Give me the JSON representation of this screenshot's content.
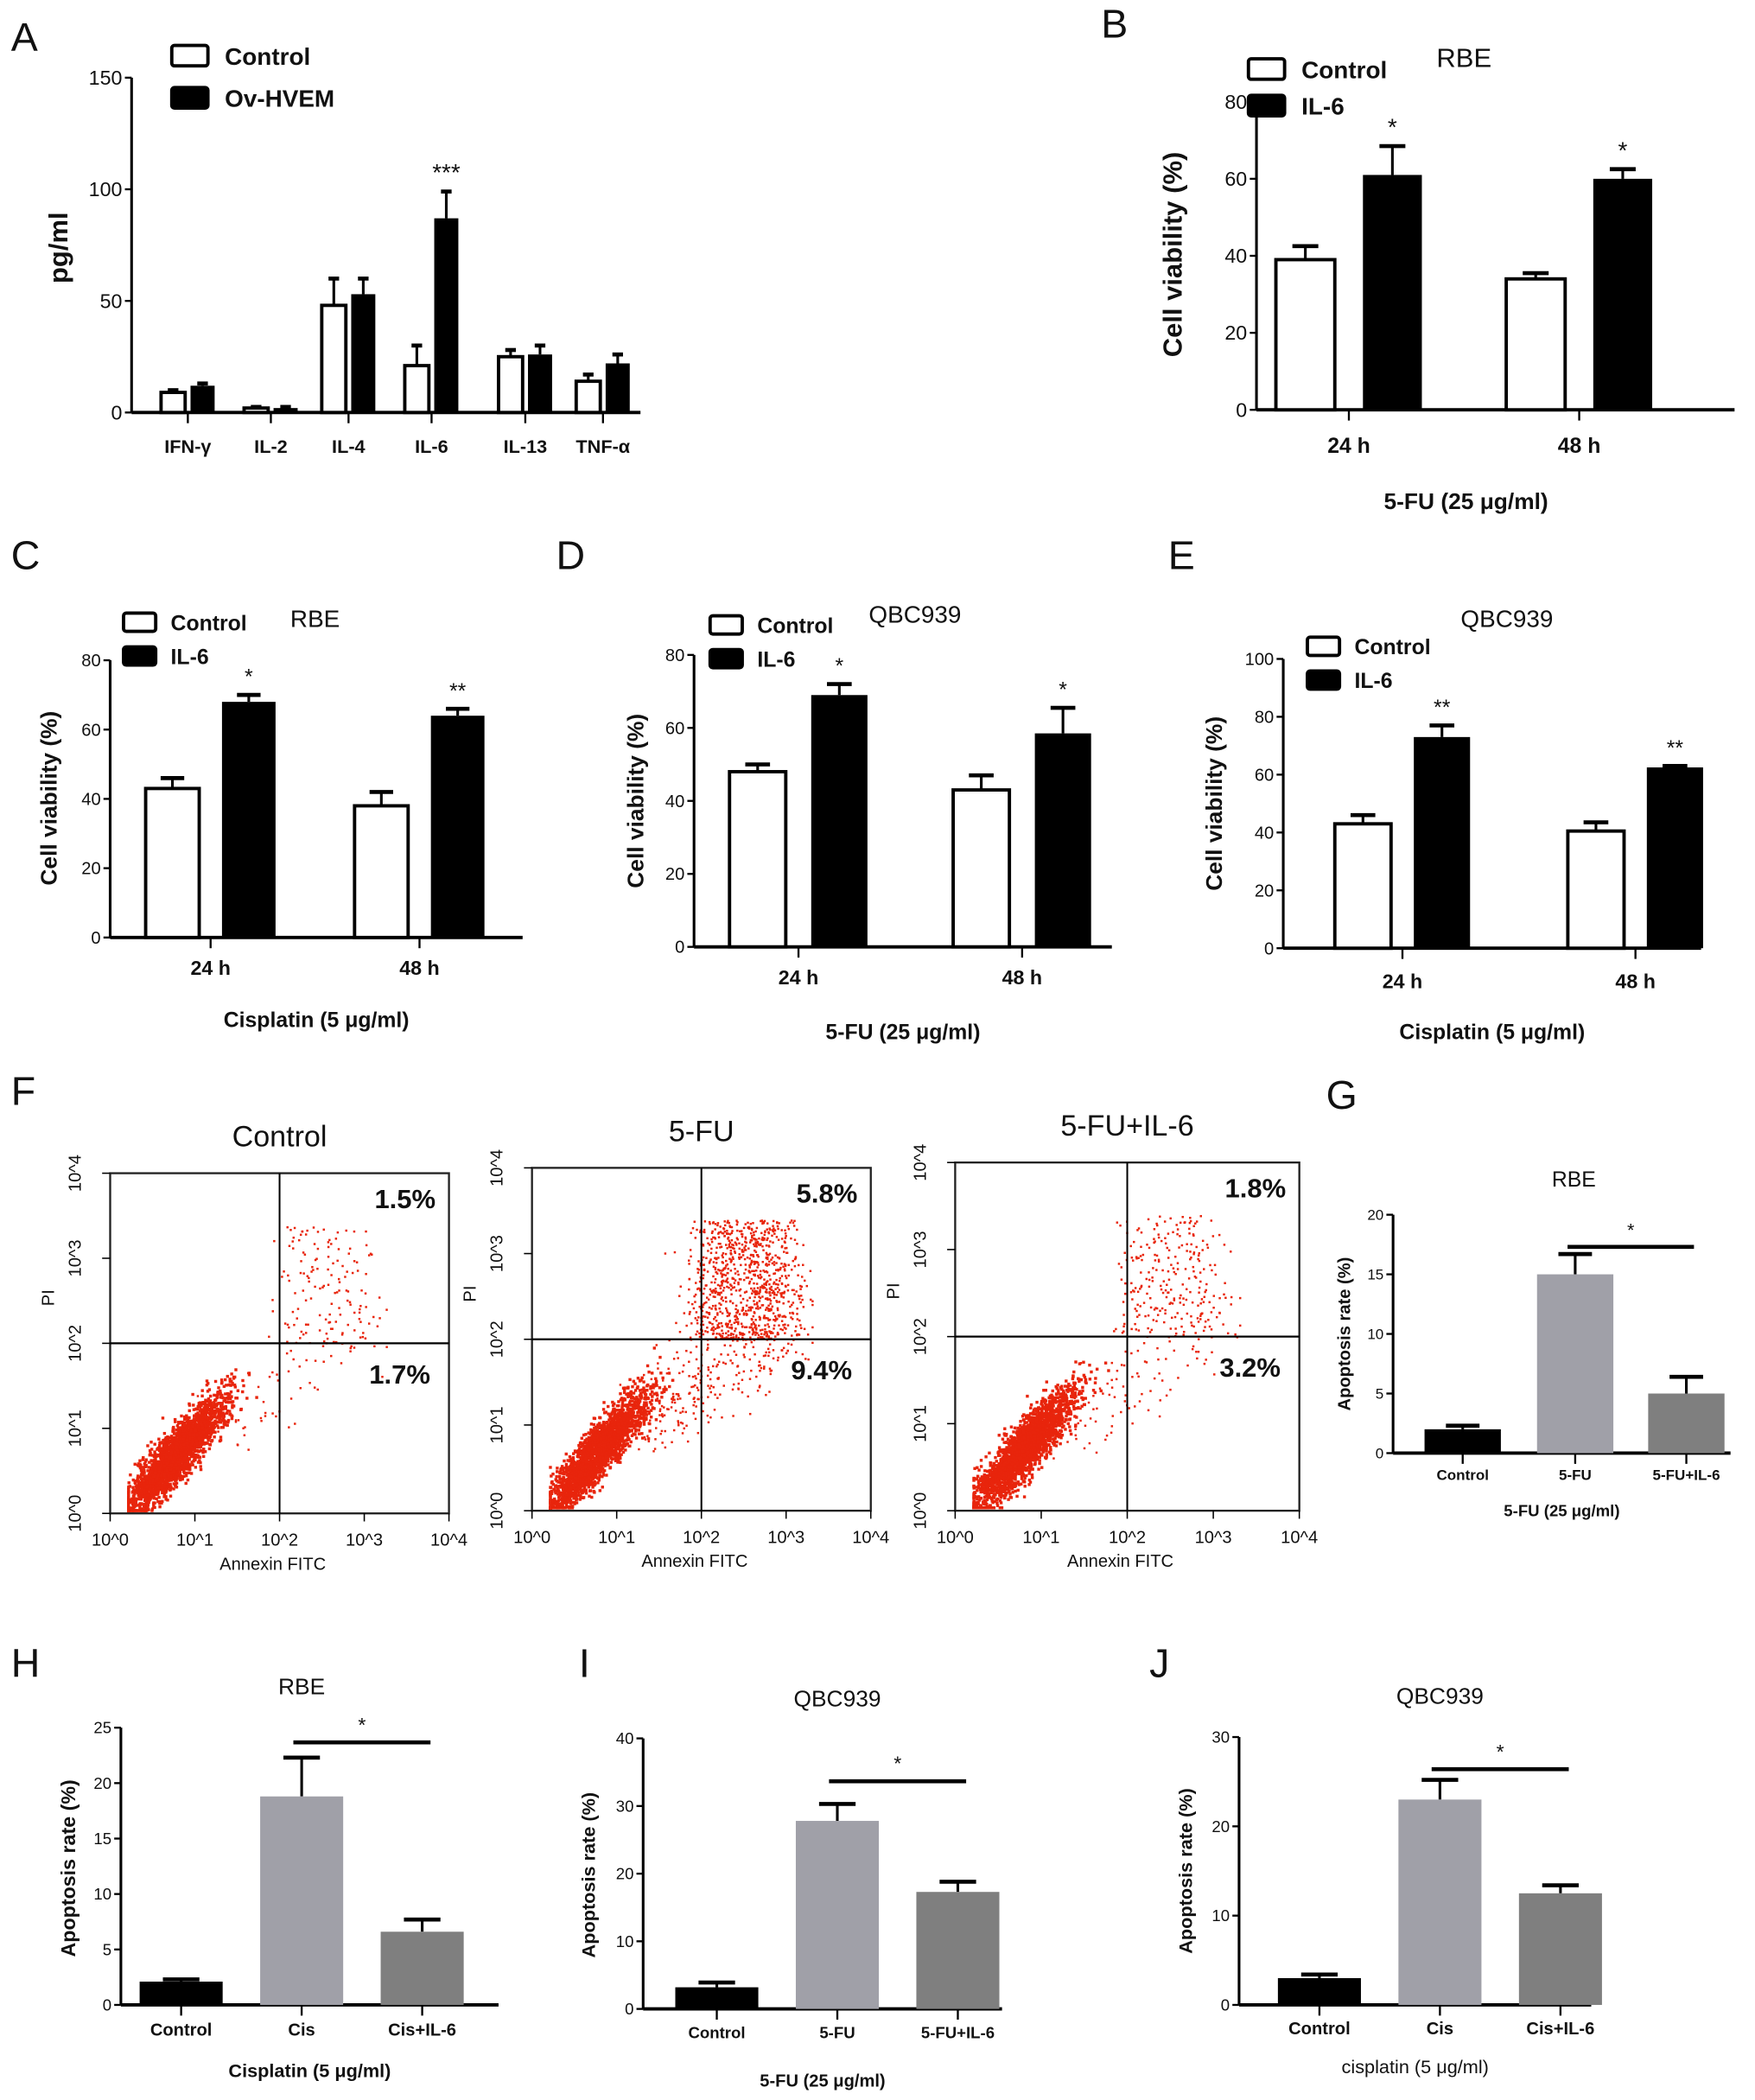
{
  "chart_data": [
    {
      "panel": "A",
      "type": "bar",
      "title": "",
      "ylabel": "pg/ml",
      "xlabel": "",
      "ylim": [
        0,
        150
      ],
      "yticks": [
        0,
        50,
        100,
        150
      ],
      "categories": [
        "IFN-γ",
        "IL-2",
        "IL-4",
        "IL-6",
        "IL-13",
        "TNF-α"
      ],
      "series": [
        {
          "name": "Control",
          "fill": "#ffffff",
          "values": [
            9,
            2,
            48,
            21,
            25,
            14
          ],
          "errors": [
            1,
            0.5,
            12,
            9,
            3,
            3
          ]
        },
        {
          "name": "Ov-HVEM",
          "fill": "#000000",
          "values": [
            12,
            2,
            53,
            87,
            26,
            22
          ],
          "errors": [
            1,
            0.5,
            7,
            12,
            4,
            4
          ]
        }
      ],
      "annotations": [
        "",
        "",
        "",
        "***",
        "",
        ""
      ]
    },
    {
      "panel": "B",
      "type": "bar",
      "title": "RBE",
      "ylabel": "Cell viability (%)",
      "xlabel": "5-FU (25 μg/ml)",
      "ylim": [
        0,
        80
      ],
      "yticks": [
        0,
        20,
        40,
        60,
        80
      ],
      "categories": [
        "24 h",
        "48 h"
      ],
      "series": [
        {
          "name": "Control",
          "fill": "#ffffff",
          "values": [
            39,
            34
          ],
          "errors": [
            3.5,
            1.5
          ]
        },
        {
          "name": "IL-6",
          "fill": "#000000",
          "values": [
            61,
            60
          ],
          "errors": [
            7.5,
            2.5
          ]
        }
      ],
      "annotations": [
        "*",
        "*"
      ]
    },
    {
      "panel": "C",
      "type": "bar",
      "title": "RBE",
      "ylabel": "Cell viability (%)",
      "xlabel": "Cisplatin (5 μg/ml)",
      "ylim": [
        0,
        80
      ],
      "yticks": [
        0,
        20,
        40,
        60,
        80
      ],
      "categories": [
        "24 h",
        "48 h"
      ],
      "series": [
        {
          "name": "Control",
          "fill": "#ffffff",
          "values": [
            43,
            38
          ],
          "errors": [
            3,
            4
          ]
        },
        {
          "name": "IL-6",
          "fill": "#000000",
          "values": [
            68,
            64
          ],
          "errors": [
            2,
            2
          ]
        }
      ],
      "annotations": [
        "*",
        "**"
      ]
    },
    {
      "panel": "D",
      "type": "bar",
      "title": "QBC939",
      "ylabel": "Cell viability (%)",
      "xlabel": "5-FU (25 μg/ml)",
      "ylim": [
        0,
        80
      ],
      "yticks": [
        0,
        20,
        40,
        60,
        80
      ],
      "categories": [
        "24 h",
        "48 h"
      ],
      "series": [
        {
          "name": "Control",
          "fill": "#ffffff",
          "values": [
            48,
            43
          ],
          "errors": [
            2,
            4
          ]
        },
        {
          "name": "IL-6",
          "fill": "#000000",
          "values": [
            69,
            58.5
          ],
          "errors": [
            3,
            7
          ]
        }
      ],
      "annotations": [
        "*",
        "*"
      ]
    },
    {
      "panel": "E",
      "type": "bar",
      "title": "QBC939",
      "ylabel": "Cell viability (%)",
      "xlabel": "Cisplatin (5 μg/ml)",
      "ylim": [
        0,
        100
      ],
      "yticks": [
        0,
        20,
        40,
        60,
        80,
        100
      ],
      "categories": [
        "24 h",
        "48 h"
      ],
      "series": [
        {
          "name": "Control",
          "fill": "#ffffff",
          "values": [
            43,
            40.5
          ],
          "errors": [
            3,
            3
          ]
        },
        {
          "name": "IL-6",
          "fill": "#000000",
          "values": [
            73,
            62.5
          ],
          "errors": [
            4,
            0.5
          ]
        }
      ],
      "annotations": [
        "**",
        "**"
      ]
    },
    {
      "panel": "F",
      "type": "scatter",
      "xlabel": "Annexin FITC",
      "ylabel": "PI",
      "scale": "log",
      "xlim": [
        1,
        10000
      ],
      "ylim": [
        1,
        10000
      ],
      "tick_labels": [
        "10^0",
        "10^1",
        "10^2",
        "10^3",
        "10^4"
      ],
      "point_color": "#e8250c",
      "gate": [
        100,
        100
      ],
      "plots": [
        {
          "title": "Control",
          "upper_right": "1.5%",
          "lower_right": "1.7%"
        },
        {
          "title": "5-FU",
          "upper_right": "5.8%",
          "lower_right": "9.4%"
        },
        {
          "title": "5-FU+IL-6",
          "upper_right": "1.8%",
          "lower_right": "3.2%"
        }
      ]
    },
    {
      "panel": "G",
      "type": "bar",
      "title": "RBE",
      "ylabel": "Apoptosis rate (%)",
      "xlabel": "5-FU (25 μg/ml)",
      "ylim": [
        0,
        20
      ],
      "yticks": [
        0,
        5,
        10,
        15,
        20
      ],
      "categories": [
        "Control",
        "5-FU",
        "5-FU+IL-6"
      ],
      "fills": [
        "#000000",
        "#a0a0a8",
        "#7f7f7f"
      ],
      "values": [
        2,
        15,
        5
      ],
      "errors": [
        0.3,
        1.7,
        1.4
      ],
      "significance": {
        "between": [
          1,
          2
        ],
        "label": "*"
      }
    },
    {
      "panel": "H",
      "type": "bar",
      "title": "RBE",
      "ylabel": "Apoptosis rate (%)",
      "xlabel": "Cisplatin (5 μg/ml)",
      "ylim": [
        0,
        25
      ],
      "yticks": [
        0,
        5,
        10,
        15,
        20,
        25
      ],
      "categories": [
        "Control",
        "Cis",
        "Cis+IL-6"
      ],
      "fills": [
        "#000000",
        "#a0a0a8",
        "#7f7f7f"
      ],
      "values": [
        2.1,
        18.8,
        6.6
      ],
      "errors": [
        0.2,
        3.5,
        1.1
      ],
      "significance": {
        "between": [
          1,
          2
        ],
        "label": "*"
      }
    },
    {
      "panel": "I",
      "type": "bar",
      "title": "QBC939",
      "ylabel": "Apoptosis rate (%)",
      "xlabel": "5-FU (25 μg/ml)",
      "ylim": [
        0,
        40
      ],
      "yticks": [
        0,
        10,
        20,
        30,
        40
      ],
      "categories": [
        "Control",
        "5-FU",
        "5-FU+IL-6"
      ],
      "fills": [
        "#000000",
        "#a0a0a8",
        "#7f7f7f"
      ],
      "values": [
        3.2,
        27.8,
        17.3
      ],
      "errors": [
        0.7,
        2.5,
        1.5
      ],
      "significance": {
        "between": [
          1,
          2
        ],
        "label": "*"
      }
    },
    {
      "panel": "J",
      "type": "bar",
      "title": "QBC939",
      "ylabel": "Apoptosis rate (%)",
      "xlabel": "cisplatin (5 μg/ml)",
      "ylim": [
        0,
        30
      ],
      "yticks": [
        0,
        10,
        20,
        30
      ],
      "categories": [
        "Control",
        "Cis",
        "Cis+IL-6"
      ],
      "fills": [
        "#000000",
        "#a0a0a8",
        "#7f7f7f"
      ],
      "values": [
        3,
        23,
        12.5
      ],
      "errors": [
        0.4,
        2.2,
        0.9
      ],
      "significance": {
        "between": [
          1,
          2
        ],
        "label": "*"
      }
    }
  ]
}
